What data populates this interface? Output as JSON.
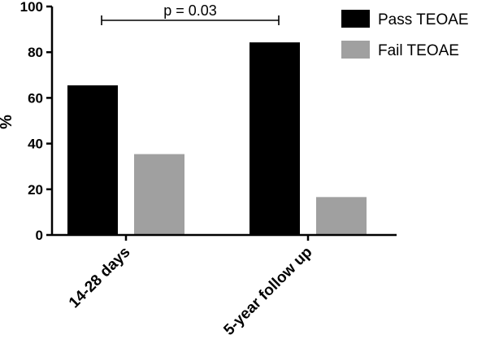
{
  "chart_data": {
    "type": "bar",
    "categories": [
      "14-28 days",
      "5-year follow up"
    ],
    "series": [
      {
        "name": "Pass TEOAE",
        "values": [
          65.5,
          84.3
        ],
        "color": "#000000"
      },
      {
        "name": "Fail TEOAE",
        "values": [
          35.4,
          16.6
        ],
        "color": "#a0a0a0"
      }
    ],
    "ylabel": "%",
    "xlabel": "",
    "ylim": [
      0,
      100
    ],
    "yticks": [
      0,
      20,
      40,
      60,
      80,
      100
    ],
    "grid": false,
    "legend_position": "top-right",
    "annotation": {
      "text": "p  = 0.03",
      "between_categories": [
        0,
        1
      ]
    }
  }
}
